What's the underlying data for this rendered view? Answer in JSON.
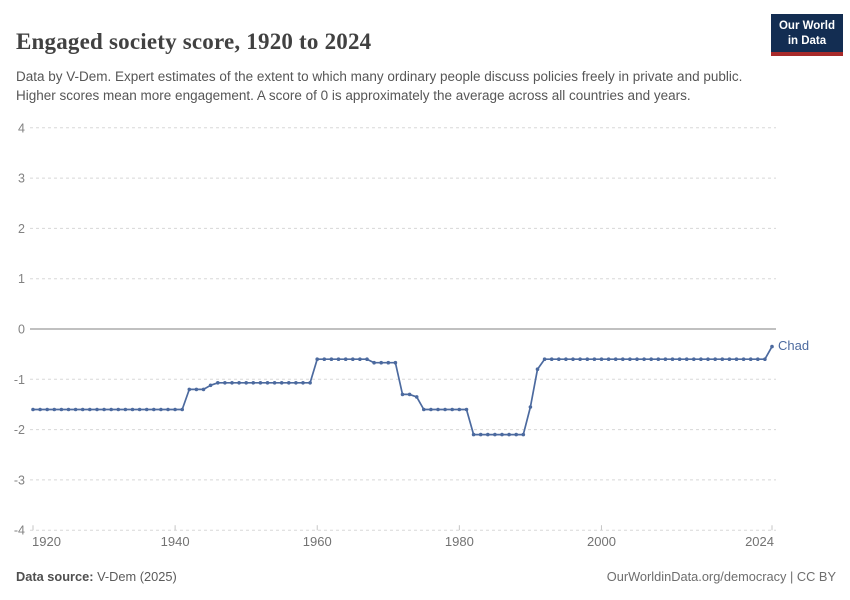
{
  "header": {
    "title": "Engaged society score, 1920 to 2024",
    "subtitle": "Data by V-Dem. Expert estimates of the extent to which many ordinary people discuss policies freely in private and public. Higher scores mean more engagement. A score of 0 is approximately the average across all countries and years.",
    "logo": {
      "line1": "Our World",
      "line2": "in Data",
      "bg_color": "#132d52",
      "accent_color": "#a82a2a"
    }
  },
  "chart_data": {
    "type": "line",
    "title": "Engaged society score, 1920 to 2024",
    "xlabel": "",
    "ylabel": "",
    "xlim": [
      1920,
      2024
    ],
    "ylim": [
      -4,
      4
    ],
    "x_ticks": [
      1920,
      1940,
      1960,
      1980,
      2000,
      2024
    ],
    "y_ticks": [
      4,
      3,
      2,
      1,
      0,
      -1,
      -2,
      -3,
      -4
    ],
    "grid": "horizontal-dashed, zero-line-solid",
    "legend_position": "end-of-line-label",
    "line_color": "#4c6a9f",
    "series": [
      {
        "name": "Chad",
        "points": [
          [
            1920,
            -1.6
          ],
          [
            1921,
            -1.6
          ],
          [
            1922,
            -1.6
          ],
          [
            1923,
            -1.6
          ],
          [
            1924,
            -1.6
          ],
          [
            1925,
            -1.6
          ],
          [
            1926,
            -1.6
          ],
          [
            1927,
            -1.6
          ],
          [
            1928,
            -1.6
          ],
          [
            1929,
            -1.6
          ],
          [
            1930,
            -1.6
          ],
          [
            1931,
            -1.6
          ],
          [
            1932,
            -1.6
          ],
          [
            1933,
            -1.6
          ],
          [
            1934,
            -1.6
          ],
          [
            1935,
            -1.6
          ],
          [
            1936,
            -1.6
          ],
          [
            1937,
            -1.6
          ],
          [
            1938,
            -1.6
          ],
          [
            1939,
            -1.6
          ],
          [
            1940,
            -1.6
          ],
          [
            1941,
            -1.6
          ],
          [
            1942,
            -1.2
          ],
          [
            1943,
            -1.2
          ],
          [
            1944,
            -1.2
          ],
          [
            1945,
            -1.12
          ],
          [
            1946,
            -1.07
          ],
          [
            1947,
            -1.07
          ],
          [
            1948,
            -1.07
          ],
          [
            1949,
            -1.07
          ],
          [
            1950,
            -1.07
          ],
          [
            1951,
            -1.07
          ],
          [
            1952,
            -1.07
          ],
          [
            1953,
            -1.07
          ],
          [
            1954,
            -1.07
          ],
          [
            1955,
            -1.07
          ],
          [
            1956,
            -1.07
          ],
          [
            1957,
            -1.07
          ],
          [
            1958,
            -1.07
          ],
          [
            1959,
            -1.07
          ],
          [
            1960,
            -0.6
          ],
          [
            1961,
            -0.6
          ],
          [
            1962,
            -0.6
          ],
          [
            1963,
            -0.6
          ],
          [
            1964,
            -0.6
          ],
          [
            1965,
            -0.6
          ],
          [
            1966,
            -0.6
          ],
          [
            1967,
            -0.6
          ],
          [
            1968,
            -0.67
          ],
          [
            1969,
            -0.67
          ],
          [
            1970,
            -0.67
          ],
          [
            1971,
            -0.67
          ],
          [
            1972,
            -1.3
          ],
          [
            1973,
            -1.3
          ],
          [
            1974,
            -1.35
          ],
          [
            1975,
            -1.6
          ],
          [
            1976,
            -1.6
          ],
          [
            1977,
            -1.6
          ],
          [
            1978,
            -1.6
          ],
          [
            1979,
            -1.6
          ],
          [
            1980,
            -1.6
          ],
          [
            1981,
            -1.6
          ],
          [
            1982,
            -2.1
          ],
          [
            1983,
            -2.1
          ],
          [
            1984,
            -2.1
          ],
          [
            1985,
            -2.1
          ],
          [
            1986,
            -2.1
          ],
          [
            1987,
            -2.1
          ],
          [
            1988,
            -2.1
          ],
          [
            1989,
            -2.1
          ],
          [
            1990,
            -1.55
          ],
          [
            1991,
            -0.8
          ],
          [
            1992,
            -0.6
          ],
          [
            1993,
            -0.6
          ],
          [
            1994,
            -0.6
          ],
          [
            1995,
            -0.6
          ],
          [
            1996,
            -0.6
          ],
          [
            1997,
            -0.6
          ],
          [
            1998,
            -0.6
          ],
          [
            1999,
            -0.6
          ],
          [
            2000,
            -0.6
          ],
          [
            2001,
            -0.6
          ],
          [
            2002,
            -0.6
          ],
          [
            2003,
            -0.6
          ],
          [
            2004,
            -0.6
          ],
          [
            2005,
            -0.6
          ],
          [
            2006,
            -0.6
          ],
          [
            2007,
            -0.6
          ],
          [
            2008,
            -0.6
          ],
          [
            2009,
            -0.6
          ],
          [
            2010,
            -0.6
          ],
          [
            2011,
            -0.6
          ],
          [
            2012,
            -0.6
          ],
          [
            2013,
            -0.6
          ],
          [
            2014,
            -0.6
          ],
          [
            2015,
            -0.6
          ],
          [
            2016,
            -0.6
          ],
          [
            2017,
            -0.6
          ],
          [
            2018,
            -0.6
          ],
          [
            2019,
            -0.6
          ],
          [
            2020,
            -0.6
          ],
          [
            2021,
            -0.6
          ],
          [
            2022,
            -0.6
          ],
          [
            2023,
            -0.6
          ],
          [
            2024,
            -0.35
          ]
        ]
      }
    ]
  },
  "footer": {
    "source_label": "Data source:",
    "source_value": " V-Dem (2025)",
    "attribution": "OurWorldinData.org/democracy | CC BY"
  }
}
